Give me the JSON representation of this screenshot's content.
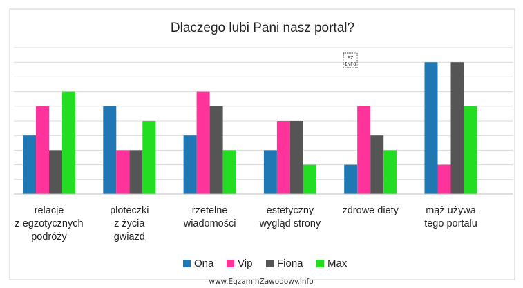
{
  "chart_data": {
    "type": "bar",
    "title": "Dlaczego lubi Pani nasz portal?",
    "categories": [
      [
        "relacje",
        "z  egzotycznych",
        "podróży"
      ],
      [
        "ploteczki",
        "z życia",
        "gwiazd"
      ],
      [
        "rzetelne",
        "wiadomości"
      ],
      [
        "estetyczny",
        "wygląd strony"
      ],
      [
        "zdrowe diety"
      ],
      [
        "mąż używa",
        "tego  portalu"
      ]
    ],
    "series": [
      {
        "name": "Ona",
        "color": "#1f77b4",
        "values": [
          4,
          6,
          4,
          3,
          2,
          9
        ]
      },
      {
        "name": "Vip",
        "color": "#ff3399",
        "values": [
          6,
          3,
          7,
          5,
          6,
          2
        ]
      },
      {
        "name": "Fiona",
        "color": "#555555",
        "values": [
          3,
          3,
          6,
          5,
          4,
          9
        ]
      },
      {
        "name": "Max",
        "color": "#22dd22",
        "values": [
          7,
          5,
          3,
          2,
          3,
          6
        ]
      }
    ],
    "ylim": [
      0,
      10
    ],
    "grid": true,
    "legend": "bottom",
    "xlabel": "",
    "ylabel": ""
  },
  "watermark": "www.EgzaminZawodowy.info",
  "logo": {
    "lines": [
      "EZ",
      "INFO"
    ]
  }
}
